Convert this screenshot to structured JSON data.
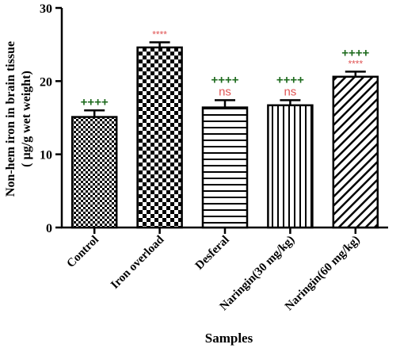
{
  "chart_data": {
    "type": "bar",
    "categories": [
      "Control",
      "Iron overload",
      "Desferal",
      "Naringin(30 mg/kg)",
      "Naringin(60 mg/kg)"
    ],
    "values": [
      15.1,
      24.6,
      16.4,
      16.7,
      20.6
    ],
    "errors": [
      0.9,
      0.7,
      1.0,
      0.7,
      0.7
    ],
    "patterns": [
      "small-checker",
      "large-checker",
      "horizontal-lines",
      "vertical-lines",
      "diagonal-lines"
    ],
    "significance_plus": [
      "++++",
      "",
      "++++",
      "++++",
      "++++"
    ],
    "significance_star": [
      "",
      "****",
      "ns",
      "ns",
      "****"
    ],
    "xlabel": "Samples",
    "ylabel_line1": "Non-hem iron in brain tissue",
    "ylabel_line2": "( µg/g wet weight)",
    "ylim": [
      0,
      30
    ],
    "yticks": [
      "0",
      "10",
      "20",
      "30"
    ],
    "grid": false,
    "colors": {
      "plus": "#1e6b1e",
      "star": "#e05555",
      "axis": "#000000"
    }
  }
}
